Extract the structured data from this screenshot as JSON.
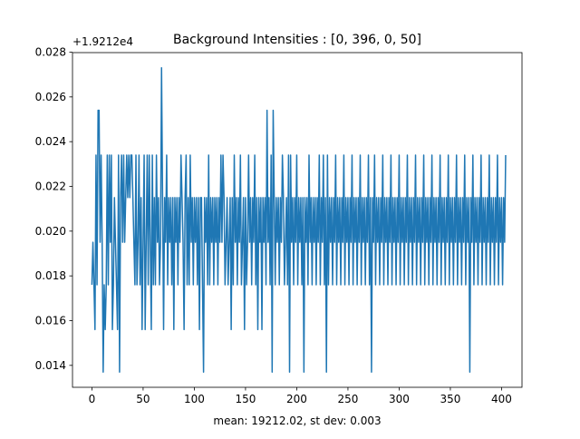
{
  "chart_data": {
    "type": "line",
    "title": "Background Intensities : [0, 396, 0, 50]",
    "xlabel": "mean: 19212.02, st dev: 0.003",
    "ylabel": "",
    "offset_label": "+1.9212e4",
    "xlim": [
      -18.95,
      419.95
    ],
    "ylim": [
      0.01302,
      0.02798
    ],
    "x_ticks": [
      0,
      50,
      100,
      150,
      200,
      250,
      300,
      350,
      400
    ],
    "x_tick_labels": [
      "0",
      "50",
      "100",
      "150",
      "200",
      "250",
      "300",
      "350",
      "400"
    ],
    "y_ticks": [
      0.014,
      0.016,
      0.018,
      0.02,
      0.022,
      0.024,
      0.026,
      0.028
    ],
    "y_tick_labels": [
      "0.014",
      "0.016",
      "0.018",
      "0.020",
      "0.022",
      "0.024",
      "0.026",
      "0.028"
    ],
    "grid": false,
    "line_color": "#1f77b4",
    "series": [
      {
        "name": "",
        "x_start": 0,
        "x_step": 1,
        "values": [
          0.0176,
          0.0195,
          0.0176,
          0.0156,
          0.0234,
          0.0176,
          0.0254,
          0.0254,
          0.0195,
          0.0234,
          0.0195,
          0.0137,
          0.0176,
          0.0156,
          0.0176,
          0.0234,
          0.0176,
          0.0234,
          0.0195,
          0.0234,
          0.0156,
          0.0176,
          0.0215,
          0.0195,
          0.0176,
          0.0156,
          0.0234,
          0.0137,
          0.0215,
          0.0234,
          0.0195,
          0.0234,
          0.0195,
          0.0215,
          0.0234,
          0.0215,
          0.0234,
          0.0215,
          0.0234,
          0.0234,
          0.0215,
          0.0195,
          0.0176,
          0.0234,
          0.0176,
          0.0195,
          0.0234,
          0.0176,
          0.0215,
          0.0156,
          0.0195,
          0.0234,
          0.0156,
          0.0195,
          0.0234,
          0.0176,
          0.0234,
          0.0195,
          0.0156,
          0.0234,
          0.0176,
          0.0215,
          0.0176,
          0.0234,
          0.0195,
          0.0215,
          0.0176,
          0.0195,
          0.0273,
          0.0215,
          0.0156,
          0.0215,
          0.0195,
          0.0234,
          0.0176,
          0.0215,
          0.0195,
          0.0215,
          0.0176,
          0.0215,
          0.0156,
          0.0215,
          0.0195,
          0.0215,
          0.0176,
          0.0215,
          0.0195,
          0.0234,
          0.0215,
          0.0195,
          0.0156,
          0.0215,
          0.0234,
          0.0176,
          0.0215,
          0.0176,
          0.0234,
          0.0195,
          0.0215,
          0.0176,
          0.0215,
          0.0195,
          0.0215,
          0.0176,
          0.0215,
          0.0156,
          0.0215,
          0.0215,
          0.0176,
          0.0137,
          0.0215,
          0.0195,
          0.0215,
          0.0176,
          0.0234,
          0.0176,
          0.0215,
          0.0195,
          0.0215,
          0.0176,
          0.0215,
          0.0195,
          0.0215,
          0.0176,
          0.0215,
          0.0195,
          0.0234,
          0.0195,
          0.0234,
          0.0215,
          0.0176,
          0.0195,
          0.0215,
          0.0176,
          0.0195,
          0.0215,
          0.0156,
          0.0215,
          0.0176,
          0.0234,
          0.0195,
          0.0215,
          0.0176,
          0.0215,
          0.0195,
          0.0234,
          0.0176,
          0.0195,
          0.0215,
          0.0156,
          0.0215,
          0.0176,
          0.0195,
          0.0234,
          0.0195,
          0.0215,
          0.0176,
          0.0215,
          0.0195,
          0.0234,
          0.0176,
          0.0215,
          0.0156,
          0.0215,
          0.0195,
          0.0215,
          0.0156,
          0.0215,
          0.0195,
          0.0215,
          0.0176,
          0.0254,
          0.0195,
          0.0215,
          0.0176,
          0.0234,
          0.0137,
          0.0254,
          0.0215,
          0.0176,
          0.0215,
          0.0195,
          0.0215,
          0.0176,
          0.0215,
          0.0195,
          0.0234,
          0.0215,
          0.0176,
          0.0195,
          0.0215,
          0.0176,
          0.0234,
          0.0137,
          0.0234,
          0.0195,
          0.0215,
          0.0176,
          0.0215,
          0.0195,
          0.0234,
          0.0176,
          0.0215,
          0.0195,
          0.0215,
          0.0176,
          0.0215,
          0.0137,
          0.0215,
          0.0195,
          0.0215,
          0.0176,
          0.0234,
          0.0195,
          0.0215,
          0.0176,
          0.0215,
          0.0195,
          0.0215,
          0.0176,
          0.0215,
          0.0195,
          0.0234,
          0.0176,
          0.0215,
          0.0195,
          0.0234,
          0.0176,
          0.0215,
          0.0137,
          0.0234,
          0.0176,
          0.0215,
          0.0195,
          0.0215,
          0.0176,
          0.0215,
          0.0195,
          0.0234,
          0.0176,
          0.0215,
          0.0195,
          0.0215,
          0.0176,
          0.0215,
          0.0195,
          0.0234,
          0.0176,
          0.0215,
          0.0195,
          0.0215,
          0.0176,
          0.0215,
          0.0195,
          0.0234,
          0.0176,
          0.0215,
          0.0195,
          0.0215,
          0.0176,
          0.0215,
          0.0195,
          0.0234,
          0.0176,
          0.0215,
          0.0195,
          0.0215,
          0.0176,
          0.0215,
          0.0195,
          0.0234,
          0.0176,
          0.0215,
          0.0137,
          0.0215,
          0.0195,
          0.0234,
          0.0176,
          0.0215,
          0.0195,
          0.0215,
          0.0176,
          0.0215,
          0.0195,
          0.0234,
          0.0176,
          0.0215,
          0.0195,
          0.0215,
          0.0176,
          0.0215,
          0.0195,
          0.0234,
          0.0176,
          0.0215,
          0.0195,
          0.0215,
          0.0176,
          0.0215,
          0.0195,
          0.0234,
          0.0176,
          0.0215,
          0.0195,
          0.0215,
          0.0176,
          0.0215,
          0.0195,
          0.0234,
          0.0176,
          0.0215,
          0.0195,
          0.0215,
          0.0176,
          0.0215,
          0.0195,
          0.0234,
          0.0176,
          0.0215,
          0.0195,
          0.0215,
          0.0176,
          0.0215,
          0.0195,
          0.0234,
          0.0176,
          0.0215,
          0.0195,
          0.0215,
          0.0176,
          0.0215,
          0.0195,
          0.0234,
          0.0176,
          0.0215,
          0.0195,
          0.0215,
          0.0176,
          0.0215,
          0.0195,
          0.0234,
          0.0176,
          0.0215,
          0.0195,
          0.0215,
          0.0176,
          0.0215,
          0.0195,
          0.0234,
          0.0176,
          0.0215,
          0.0195,
          0.0215,
          0.0176,
          0.0215,
          0.0195,
          0.0234,
          0.0176,
          0.0215,
          0.0195,
          0.0215,
          0.0176,
          0.0215,
          0.0195,
          0.0234,
          0.0176,
          0.0215,
          0.0195,
          0.0215,
          0.0137,
          0.0215,
          0.0195,
          0.0234,
          0.0176,
          0.0215,
          0.0195,
          0.0215,
          0.0176,
          0.0215,
          0.0195,
          0.0234,
          0.0176,
          0.0215,
          0.0195,
          0.0215,
          0.0176,
          0.0215,
          0.0195,
          0.0234,
          0.0176,
          0.0215,
          0.0195,
          0.0215,
          0.0176,
          0.0215,
          0.0195,
          0.0234,
          0.0176,
          0.0215,
          0.0195,
          0.0215,
          0.0176,
          0.0215,
          0.0195,
          0.0234
        ]
      }
    ]
  }
}
